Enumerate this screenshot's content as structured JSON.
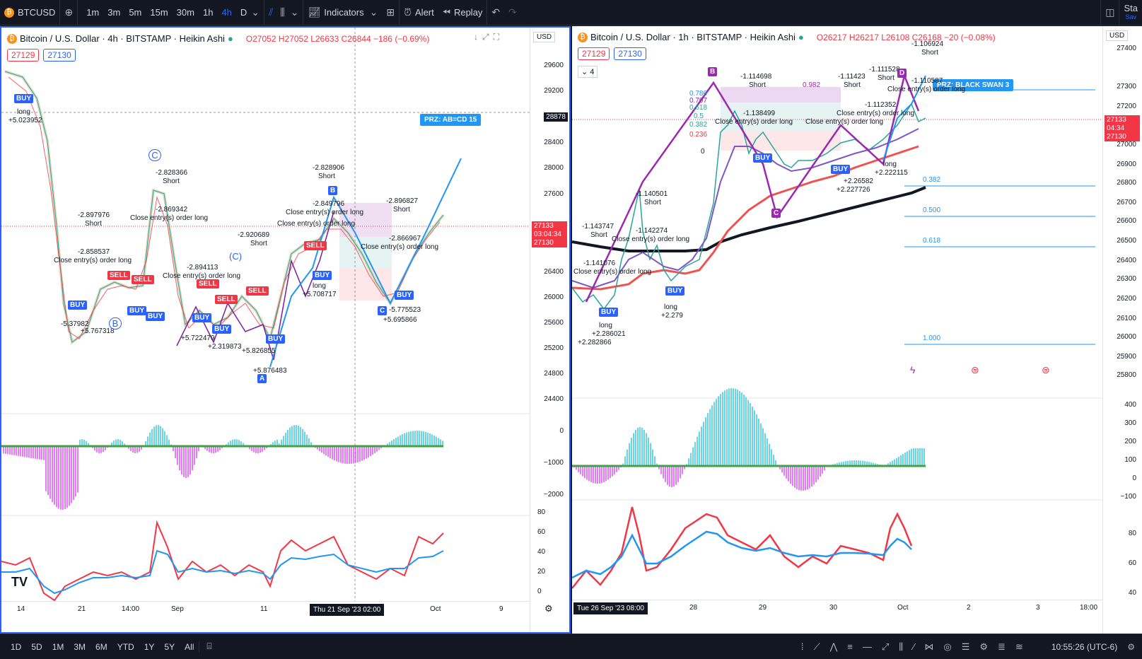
{
  "topbar": {
    "symbol": "BTCUSD",
    "timeframes": [
      "1m",
      "3m",
      "5m",
      "15m",
      "30m",
      "1h",
      "4h",
      "D"
    ],
    "active_timeframe": "4h",
    "indicators_label": "Indicators",
    "alert_label": "Alert",
    "replay_label": "Replay",
    "right_text": "Sta",
    "right_text_sub": "Sav"
  },
  "left": {
    "title": "Bitcoin / U.S. Dollar · 4h · BITSTAMP · Heikin Ashi",
    "ohlc": "O27052 H27052 L26633 C26844 −186 (−0.69%)",
    "bid": "27129",
    "ask": "27130",
    "currency": "USD",
    "price_ticks": [
      "29600",
      "29200",
      "28800",
      "28400",
      "28000",
      "27600",
      "27200",
      "26800",
      "26400",
      "26000",
      "25600",
      "25200",
      "24800",
      "24400"
    ],
    "osc_ticks": [
      "0",
      "−1000",
      "−2000"
    ],
    "rsi_ticks": [
      "80",
      "60",
      "40",
      "20",
      "0"
    ],
    "time_ticks": [
      "14",
      "21",
      "14:00",
      "Sep",
      "11",
      "Oct",
      "9"
    ],
    "crosshair_time": "Thu 21 Sep '23   02:00",
    "crosshair_price": "28878",
    "last_price": "27133",
    "countdown": "03:04:34",
    "last_price2": "27130",
    "prz_label": "PRZ: AB=CD 15",
    "point_labels": [
      "A",
      "B",
      "C",
      "C",
      "(C)",
      "B"
    ],
    "annotations": [
      "-2.897976",
      "Short",
      "-2.858537",
      "Close entry(s) order long",
      "-2.828366",
      "Short",
      "-2.869342",
      "Close entry(s) order long",
      "-2.894113",
      "Close entry(s) order long",
      "-2.920689",
      "Short",
      "-2.828906",
      "Short",
      "-2.849796",
      "Close entry(s) order long",
      "Close entry(s) order long",
      "-2.896827",
      "Short",
      "-2.866967",
      "Close entry(s) order long",
      "+5.023952",
      "long",
      "-5.37982",
      "+5.767318",
      "+5.722479",
      "+2.319873",
      "+5.826855",
      "+5.876483",
      "+5.708717",
      "-5.775523",
      "+5.695866",
      "long"
    ],
    "signals": {
      "buy": "BUY",
      "sell": "SELL"
    }
  },
  "right": {
    "title": "Bitcoin / U.S. Dollar · 1h · BITSTAMP · Heikin Ashi",
    "ohlc": "O26217 H26217 L26108 C26168 −20 (−0.08%)",
    "bid": "27129",
    "ask": "27130",
    "indicator_count": "4",
    "currency": "USD",
    "price_ticks": [
      "27400",
      "27300",
      "27200",
      "27100",
      "27000",
      "26900",
      "26800",
      "26700",
      "26600",
      "26500",
      "26400",
      "26300",
      "26200",
      "26100",
      "26000",
      "25900",
      "25800"
    ],
    "osc_ticks": [
      "400",
      "300",
      "200",
      "100",
      "0",
      "−100"
    ],
    "rsi_ticks": [
      "80",
      "60",
      "40"
    ],
    "time_ticks": [
      "28",
      "29",
      "30",
      "Oct",
      "2",
      "3",
      "18:00"
    ],
    "crosshair_time": "Tue 26 Sep '23   08:00",
    "last_price": "27133",
    "countdown": "04:34",
    "last_price2": "27130",
    "prz_label": "PRZ: BLACK SWAN 3",
    "fib_levels": [
      "0.382",
      "0.500",
      "0.618",
      "1.000"
    ],
    "fib_small": [
      "0.786",
      "0.707",
      "0.618",
      "0.5",
      "0.382",
      "0.236",
      "0"
    ],
    "point_labels": [
      "B",
      "C",
      "D"
    ],
    "annotations": [
      "-1.114698",
      "Short",
      "-1.11423",
      "Short",
      "-1.111528",
      "Short",
      "-1.106924",
      "Short",
      "-1.110587",
      "-1.138499",
      "Close entry(s) order long",
      "Close entry(s) order long",
      "-1.112352",
      "Close entry(s) order long",
      "Close entry(s) order long",
      "-1.140501",
      "Short",
      "-1.143747",
      "Short",
      "-1.142274",
      "Close entry(s) order long",
      "-1.141076",
      "Close entry(s) order long",
      "long",
      "+2.279",
      "long",
      "+2.286021",
      "+2.282866",
      "+2.26582",
      "+2.227726",
      "long",
      "+2.222115",
      "0.982"
    ],
    "signals": {
      "buy": "BUY"
    }
  },
  "bottombar": {
    "ranges": [
      "1D",
      "5D",
      "1M",
      "3M",
      "6M",
      "YTD",
      "1Y",
      "5Y",
      "All"
    ],
    "clock": "10:55:26 (UTC-6)"
  },
  "colors": {
    "bg": "#131722",
    "accent": "#2962ff",
    "red": "#f23645",
    "teal": "#26a69a",
    "purple": "#9c27b0"
  }
}
